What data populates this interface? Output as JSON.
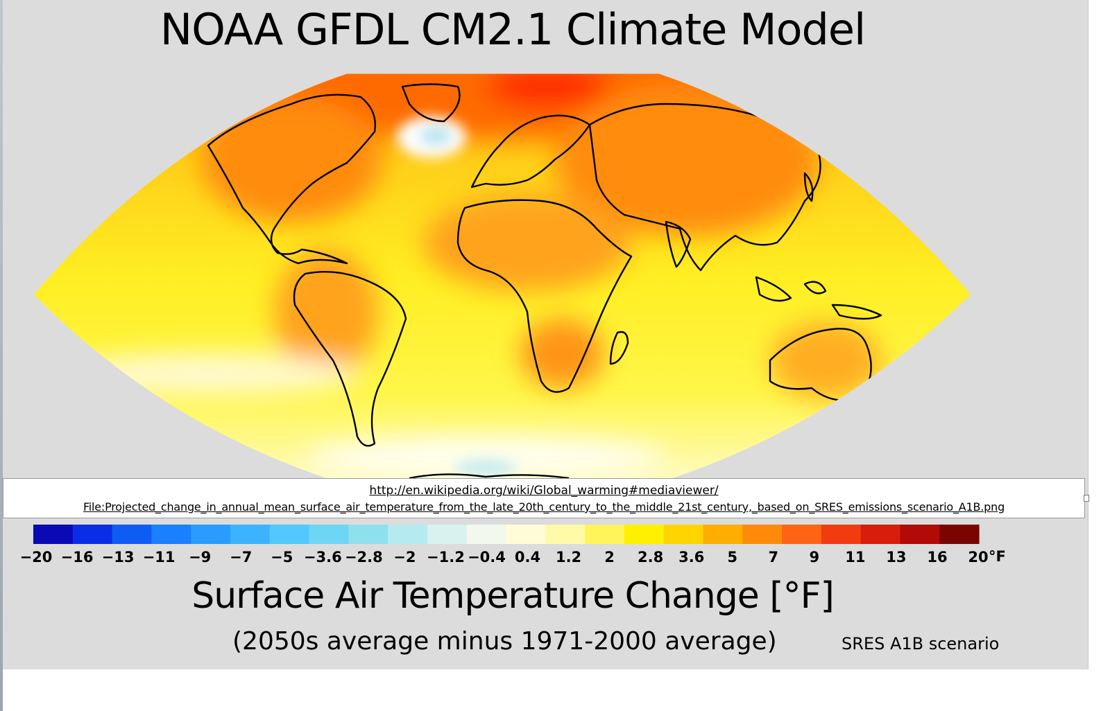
{
  "title": "NOAA GFDL CM2.1 Climate Model",
  "source": {
    "url_line_1": "http://en.wikipedia.org/wiki/Global_warming#mediaviewer/",
    "url_line_2": "File:Projected_change_in_annual_mean_surface_air_temperature_from_the_late_20th_century_to_the_middle_21st_century,_based_on_SRES_emissions_scenario_A1B.png"
  },
  "colorbar": {
    "unit": "°F",
    "ticks": [
      "−20",
      "−16",
      "−13",
      "−11",
      "−9",
      "−7",
      "−5",
      "−3.6",
      "−2.8",
      "−2",
      "−1.2",
      "−0.4",
      "0.4",
      "1.2",
      "2",
      "2.8",
      "3.6",
      "5",
      "7",
      "9",
      "11",
      "13",
      "16",
      "20"
    ],
    "colors": [
      "#0a0ab4",
      "#0a2ee6",
      "#0f5cf5",
      "#1a80ff",
      "#2a9cff",
      "#3cb3ff",
      "#52c8ff",
      "#6dd6f5",
      "#8fe0ee",
      "#b5eaf0",
      "#d8f2f0",
      "#f2f8ec",
      "#fffcd8",
      "#fffaa8",
      "#fff45a",
      "#fff000",
      "#ffd400",
      "#ffad00",
      "#ff8a0a",
      "#ff6414",
      "#f23c10",
      "#d61e0a",
      "#b20a06",
      "#7a0400"
    ]
  },
  "subtitle": "Surface Air Temperature Change [°F]",
  "subsubtitle": "(2050s average minus 1971-2000 average)",
  "scenario": "SRES A1B scenario",
  "colors": {
    "background": "#dcdcdc",
    "warm_dark": "#ff4d00",
    "warm": "#ff9a1a",
    "mild": "#ffd11a",
    "neutral": "#ffff20",
    "cool": "#cfeff2"
  }
}
